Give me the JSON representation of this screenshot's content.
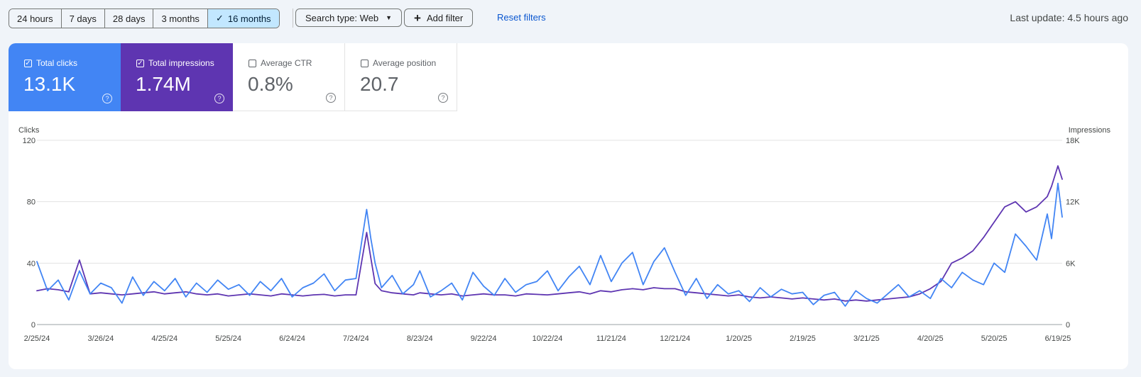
{
  "toolbar": {
    "date_ranges": [
      {
        "label": "24 hours",
        "selected": false
      },
      {
        "label": "7 days",
        "selected": false
      },
      {
        "label": "28 days",
        "selected": false
      },
      {
        "label": "3 months",
        "selected": false
      },
      {
        "label": "16 months",
        "selected": true
      }
    ],
    "search_type_label": "Search type: Web",
    "add_filter_label": "Add filter",
    "reset_filters_label": "Reset filters",
    "last_update": "Last update: 4.5 hours ago"
  },
  "metrics": [
    {
      "label": "Total clicks",
      "value": "13.1K",
      "checked": true,
      "color": "#4285f4"
    },
    {
      "label": "Total impressions",
      "value": "1.74M",
      "checked": true,
      "color": "#5e35b1"
    },
    {
      "label": "Average CTR",
      "value": "0.8%",
      "checked": false
    },
    {
      "label": "Average position",
      "value": "20.7",
      "checked": false
    }
  ],
  "chart_data": {
    "type": "line",
    "left_axis_label": "Clicks",
    "right_axis_label": "Impressions",
    "left_ticks": [
      "120",
      "80",
      "40",
      "0"
    ],
    "right_ticks": [
      "18K",
      "12K",
      "6K",
      "0"
    ],
    "ylim_left": [
      0,
      120
    ],
    "ylim_right": [
      0,
      18000
    ],
    "x_tick_labels": [
      "2/25/24",
      "3/26/24",
      "4/25/24",
      "5/25/24",
      "6/24/24",
      "7/24/24",
      "8/23/24",
      "9/22/24",
      "10/22/24",
      "11/21/24",
      "12/21/24",
      "1/20/25",
      "2/19/25",
      "3/21/25",
      "4/20/25",
      "5/20/25",
      "6/19/25"
    ],
    "grid": true,
    "series": [
      {
        "name": "Total clicks",
        "axis": "left",
        "color": "#4285f4",
        "x": [
          "2/25/24",
          "3/1/24",
          "3/6/24",
          "3/11/24",
          "3/16/24",
          "3/21/24",
          "3/26/24",
          "3/31/24",
          "4/5/24",
          "4/10/24",
          "4/15/24",
          "4/20/24",
          "4/25/24",
          "4/30/24",
          "5/5/24",
          "5/10/24",
          "5/15/24",
          "5/20/24",
          "5/25/24",
          "5/30/24",
          "6/4/24",
          "6/9/24",
          "6/14/24",
          "6/19/24",
          "6/24/24",
          "6/29/24",
          "7/4/24",
          "7/9/24",
          "7/14/24",
          "7/19/24",
          "7/24/24",
          "7/29/24",
          "7/31/24",
          "8/2/24",
          "8/5/24",
          "8/10/24",
          "8/15/24",
          "8/20/24",
          "8/23/24",
          "8/28/24",
          "9/2/24",
          "9/7/24",
          "9/12/24",
          "9/17/24",
          "9/22/24",
          "9/27/24",
          "10/2/24",
          "10/7/24",
          "10/12/24",
          "10/17/24",
          "10/22/24",
          "10/27/24",
          "11/1/24",
          "11/6/24",
          "11/11/24",
          "11/16/24",
          "11/21/24",
          "11/26/24",
          "12/1/24",
          "12/6/24",
          "12/11/24",
          "12/16/24",
          "12/21/24",
          "12/26/24",
          "12/31/24",
          "1/5/25",
          "1/10/25",
          "1/15/25",
          "1/20/25",
          "1/25/25",
          "1/30/25",
          "2/4/25",
          "2/9/25",
          "2/14/25",
          "2/19/25",
          "2/24/25",
          "3/1/25",
          "3/6/25",
          "3/11/25",
          "3/16/25",
          "3/21/25",
          "3/26/25",
          "3/31/25",
          "4/5/25",
          "4/10/25",
          "4/15/25",
          "4/20/25",
          "4/25/25",
          "4/30/25",
          "5/5/25",
          "5/10/25",
          "5/15/25",
          "5/20/25",
          "5/25/25",
          "5/30/25",
          "6/4/25",
          "6/9/25",
          "6/14/25",
          "6/16/25",
          "6/19/25",
          "6/21/25"
        ],
        "values": [
          41,
          22,
          29,
          16,
          35,
          20,
          27,
          24,
          14,
          31,
          19,
          28,
          22,
          30,
          18,
          27,
          21,
          29,
          23,
          26,
          19,
          28,
          22,
          30,
          18,
          24,
          27,
          33,
          22,
          29,
          30,
          75,
          56,
          40,
          24,
          32,
          20,
          26,
          35,
          18,
          22,
          27,
          16,
          34,
          25,
          19,
          30,
          21,
          26,
          28,
          35,
          22,
          31,
          38,
          26,
          45,
          28,
          40,
          47,
          26,
          41,
          50,
          34,
          19,
          30,
          17,
          26,
          20,
          22,
          15,
          24,
          18,
          23,
          20,
          21,
          13,
          19,
          21,
          12,
          22,
          17,
          14,
          20,
          26,
          18,
          22,
          17,
          30,
          24,
          34,
          29,
          26,
          40,
          34,
          59,
          51,
          42,
          72,
          56,
          92,
          70
        ]
      },
      {
        "name": "Total impressions",
        "axis": "right",
        "color": "#5e35b1",
        "x": [
          "2/25/24",
          "3/1/24",
          "3/6/24",
          "3/11/24",
          "3/16/24",
          "3/21/24",
          "3/26/24",
          "3/31/24",
          "4/5/24",
          "4/10/24",
          "4/15/24",
          "4/20/24",
          "4/25/24",
          "4/30/24",
          "5/5/24",
          "5/10/24",
          "5/15/24",
          "5/20/24",
          "5/25/24",
          "5/30/24",
          "6/4/24",
          "6/9/24",
          "6/14/24",
          "6/19/24",
          "6/24/24",
          "6/29/24",
          "7/4/24",
          "7/9/24",
          "7/14/24",
          "7/19/24",
          "7/24/24",
          "7/29/24",
          "7/31/24",
          "8/2/24",
          "8/5/24",
          "8/10/24",
          "8/15/24",
          "8/20/24",
          "8/23/24",
          "8/28/24",
          "9/2/24",
          "9/7/24",
          "9/12/24",
          "9/17/24",
          "9/22/24",
          "9/27/24",
          "10/2/24",
          "10/7/24",
          "10/12/24",
          "10/17/24",
          "10/22/24",
          "10/27/24",
          "11/1/24",
          "11/6/24",
          "11/11/24",
          "11/16/24",
          "11/21/24",
          "11/26/24",
          "12/1/24",
          "12/6/24",
          "12/11/24",
          "12/16/24",
          "12/21/24",
          "12/26/24",
          "12/31/24",
          "1/5/25",
          "1/10/25",
          "1/15/25",
          "1/20/25",
          "1/25/25",
          "1/30/25",
          "2/4/25",
          "2/9/25",
          "2/14/25",
          "2/19/25",
          "2/24/25",
          "3/1/25",
          "3/6/25",
          "3/11/25",
          "3/16/25",
          "3/21/25",
          "3/26/25",
          "3/31/25",
          "4/5/25",
          "4/10/25",
          "4/15/25",
          "4/20/25",
          "4/25/25",
          "4/30/25",
          "5/5/25",
          "5/10/25",
          "5/15/25",
          "5/20/25",
          "5/25/25",
          "5/30/25",
          "6/4/25",
          "6/9/25",
          "6/14/25",
          "6/16/25",
          "6/19/25",
          "6/21/25"
        ],
        "values": [
          3300,
          3500,
          3400,
          3200,
          6300,
          3000,
          3100,
          3000,
          2900,
          3000,
          3100,
          3200,
          3000,
          3100,
          3200,
          3000,
          2900,
          3000,
          2800,
          2900,
          3000,
          2900,
          2800,
          3000,
          2900,
          2800,
          2900,
          2950,
          2800,
          2900,
          2900,
          9000,
          6500,
          4000,
          3300,
          3100,
          3000,
          2900,
          3100,
          3000,
          2900,
          3000,
          2800,
          2900,
          3000,
          2900,
          2900,
          2800,
          3000,
          2950,
          2900,
          3000,
          3100,
          3200,
          3000,
          3300,
          3200,
          3400,
          3500,
          3400,
          3600,
          3500,
          3500,
          3200,
          3100,
          3000,
          2900,
          2800,
          2900,
          2700,
          2600,
          2700,
          2600,
          2500,
          2600,
          2500,
          2400,
          2500,
          2300,
          2400,
          2300,
          2400,
          2500,
          2600,
          2700,
          3000,
          3500,
          4200,
          6000,
          6500,
          7200,
          8500,
          10000,
          11500,
          12000,
          11000,
          11500,
          12500,
          13500,
          15500,
          14200
        ]
      }
    ]
  }
}
